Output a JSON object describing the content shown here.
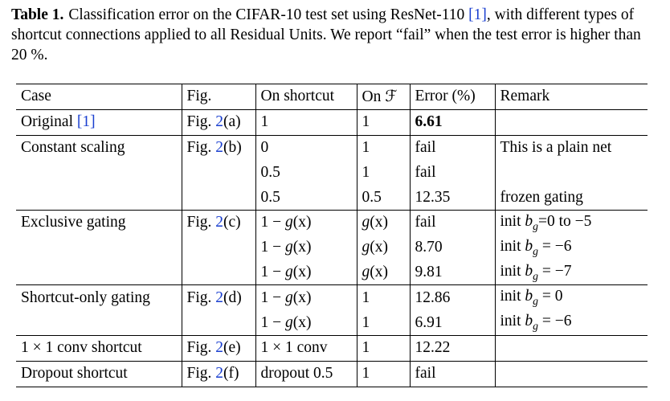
{
  "caption": {
    "label": "Table 1.",
    "text_before_ref": "Classification error on the CIFAR-10 test set using ResNet-110 ",
    "ref": "[1]",
    "text_after_ref": ", with different types of shortcut connections applied to all Residual Units. We report “fail” when the test error is higher than 20 %."
  },
  "table": {
    "headers": [
      "Case",
      "Fig.",
      "On shortcut",
      "On ℱ",
      "Error (%)",
      "Remark"
    ],
    "rows": [
      {
        "group_start": true,
        "case": "Original",
        "case_ref": "[1]",
        "fig_prefix": "Fig. ",
        "fig_num": "2",
        "fig_suffix": "(a)",
        "shortcut": "1",
        "onf": "1",
        "error": "6.61",
        "bold": true,
        "remark": ""
      },
      {
        "group_start": true,
        "case": "Constant scaling",
        "case_ref": "",
        "fig_prefix": "Fig. ",
        "fig_num": "2",
        "fig_suffix": "(b)",
        "shortcut": "0",
        "onf": "1",
        "error": "fail",
        "bold": false,
        "remark": "This is a plain net"
      },
      {
        "group_start": false,
        "case": "",
        "case_ref": "",
        "fig_prefix": "",
        "fig_num": "",
        "fig_suffix": "",
        "shortcut": "0.5",
        "onf": "1",
        "error": "fail",
        "bold": false,
        "remark": ""
      },
      {
        "group_start": false,
        "case": "",
        "case_ref": "",
        "fig_prefix": "",
        "fig_num": "",
        "fig_suffix": "",
        "shortcut": "0.5",
        "onf": "0.5",
        "error": "12.35",
        "bold": false,
        "remark": "frozen gating"
      },
      {
        "group_start": true,
        "case": "Exclusive gating",
        "case_ref": "",
        "fig_prefix": "Fig. ",
        "fig_num": "2",
        "fig_suffix": "(c)",
        "shortcut": "1 − g(x)",
        "onf": "g(x)",
        "error": "fail",
        "bold": false,
        "remark": "init b_g=0 to −5"
      },
      {
        "group_start": false,
        "case": "",
        "case_ref": "",
        "fig_prefix": "",
        "fig_num": "",
        "fig_suffix": "",
        "shortcut": "1 − g(x)",
        "onf": "g(x)",
        "error": "8.70",
        "bold": false,
        "remark": "init b_g = −6"
      },
      {
        "group_start": false,
        "case": "",
        "case_ref": "",
        "fig_prefix": "",
        "fig_num": "",
        "fig_suffix": "",
        "shortcut": "1 − g(x)",
        "onf": "g(x)",
        "error": "9.81",
        "bold": false,
        "remark": "init b_g = −7"
      },
      {
        "group_start": true,
        "case": "Shortcut-only gating",
        "case_ref": "",
        "fig_prefix": "Fig. ",
        "fig_num": "2",
        "fig_suffix": "(d)",
        "shortcut": "1 − g(x)",
        "onf": "1",
        "error": "12.86",
        "bold": false,
        "remark": "init b_g = 0"
      },
      {
        "group_start": false,
        "case": "",
        "case_ref": "",
        "fig_prefix": "",
        "fig_num": "",
        "fig_suffix": "",
        "shortcut": "1 − g(x)",
        "onf": "1",
        "error": "6.91",
        "bold": false,
        "remark": "init b_g = −6"
      },
      {
        "group_start": true,
        "case": "1 × 1 conv shortcut",
        "case_ref": "",
        "fig_prefix": "Fig. ",
        "fig_num": "2",
        "fig_suffix": "(e)",
        "shortcut": "1 × 1 conv",
        "onf": "1",
        "error": "12.22",
        "bold": false,
        "remark": ""
      },
      {
        "group_start": true,
        "case": "Dropout shortcut",
        "case_ref": "",
        "fig_prefix": "Fig. ",
        "fig_num": "2",
        "fig_suffix": "(f)",
        "shortcut": "dropout 0.5",
        "onf": "1",
        "error": "fail",
        "bold": false,
        "remark": ""
      }
    ]
  }
}
